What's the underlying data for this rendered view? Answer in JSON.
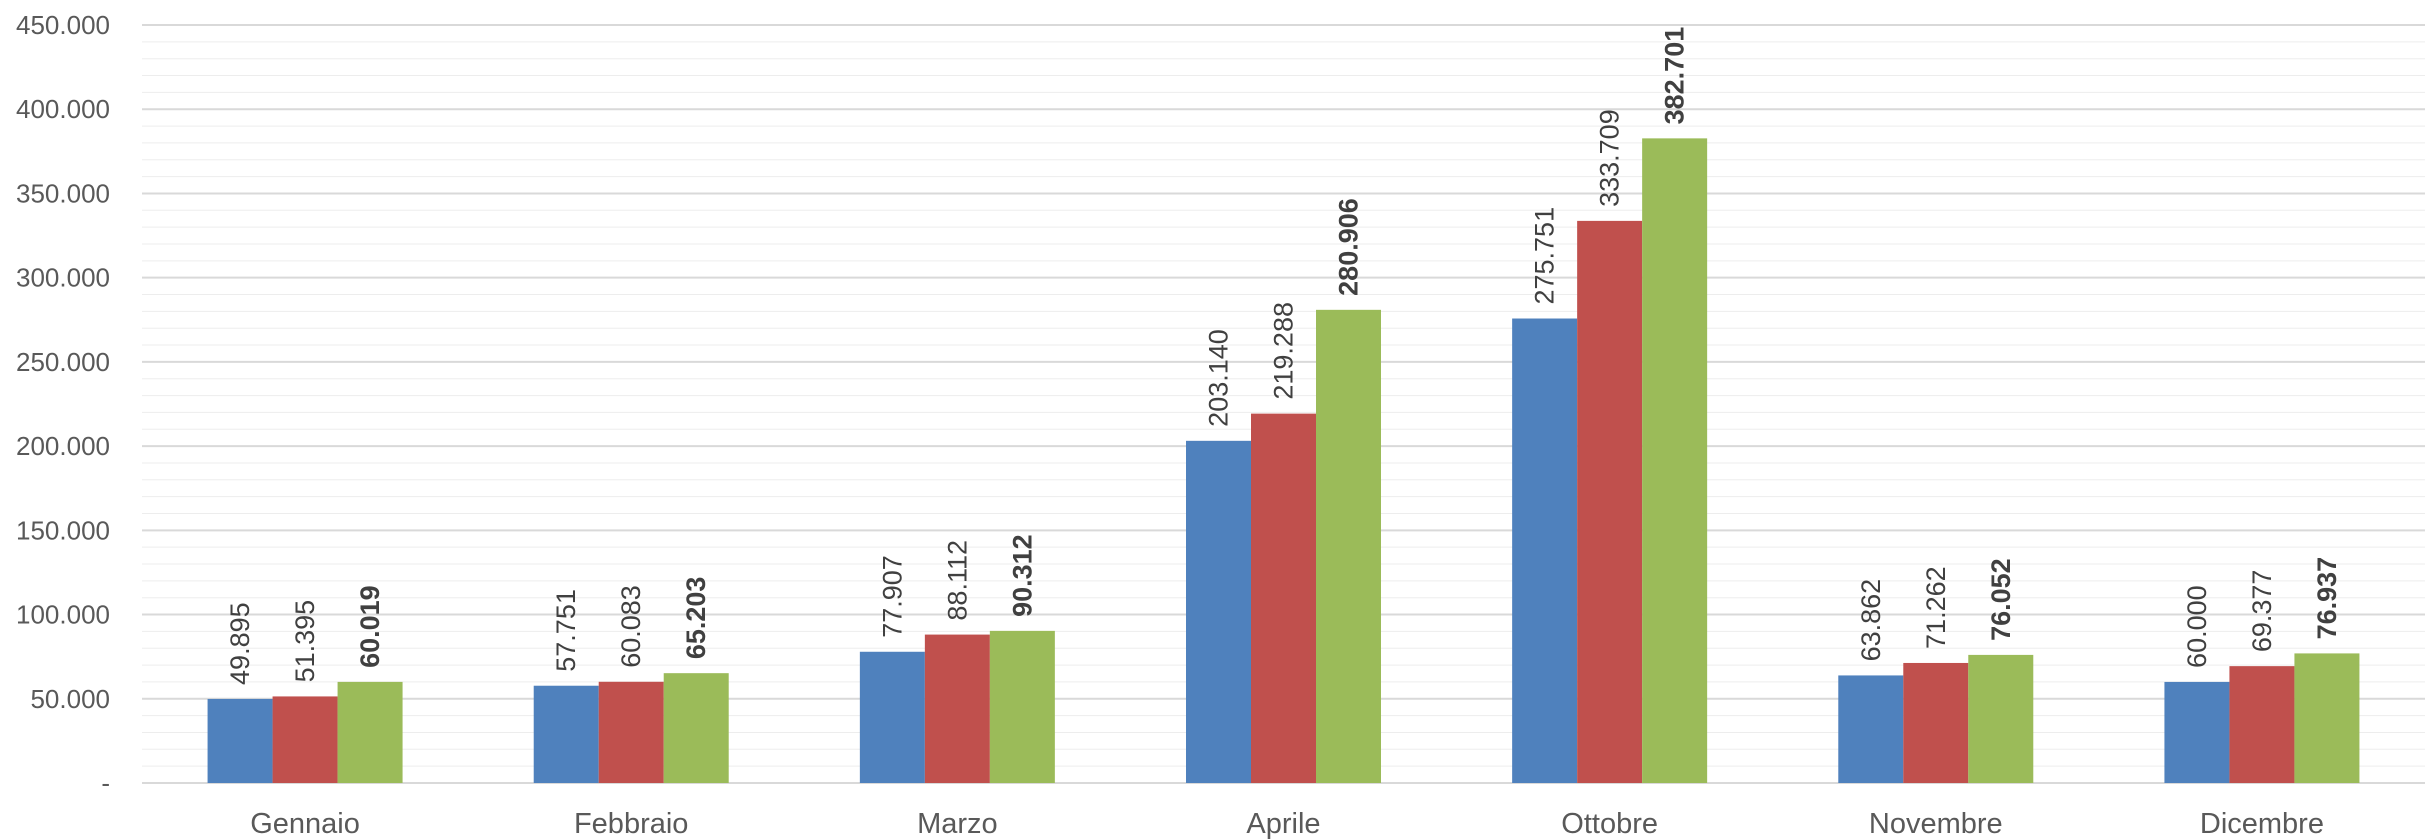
{
  "chart_data": {
    "type": "bar",
    "categories": [
      "Gennaio",
      "Febbraio",
      "Marzo",
      "Aprile",
      "Ottobre",
      "Novembre",
      "Dicembre"
    ],
    "series": [
      {
        "color": "#4F81BD",
        "values": [
          49895,
          57751,
          77907,
          203140,
          275751,
          63862,
          60000
        ],
        "labels": [
          "49.895",
          "57.751",
          "77.907",
          "203.140",
          "275.751",
          "63.862",
          "60.000"
        ],
        "label_bold": false
      },
      {
        "color": "#C0504D",
        "values": [
          51395,
          60083,
          88112,
          219288,
          333709,
          71262,
          69377
        ],
        "labels": [
          "51.395",
          "60.083",
          "88.112",
          "219.288",
          "333.709",
          "71.262",
          "69.377"
        ],
        "label_bold": false
      },
      {
        "color": "#9BBB59",
        "values": [
          60019,
          65203,
          90312,
          280906,
          382701,
          76052,
          76937
        ],
        "labels": [
          "60.019",
          "65.203",
          "90.312",
          "280.906",
          "382.701",
          "76.052",
          "76.937"
        ],
        "label_bold": true
      }
    ],
    "yticks": [
      {
        "value": 0,
        "label": "-"
      },
      {
        "value": 50000,
        "label": "50.000"
      },
      {
        "value": 100000,
        "label": "100.000"
      },
      {
        "value": 150000,
        "label": "150.000"
      },
      {
        "value": 200000,
        "label": "200.000"
      },
      {
        "value": 250000,
        "label": "250.000"
      },
      {
        "value": 300000,
        "label": "300.000"
      },
      {
        "value": 350000,
        "label": "350.000"
      },
      {
        "value": 400000,
        "label": "400.000"
      },
      {
        "value": 450000,
        "label": "450.000"
      }
    ],
    "ylim": [
      0,
      450000
    ],
    "minor_gridline_step": 10000,
    "grid": true,
    "legend": "none",
    "title": "",
    "xlabel": "",
    "ylabel": "",
    "data_label_orientation": "vertical"
  }
}
